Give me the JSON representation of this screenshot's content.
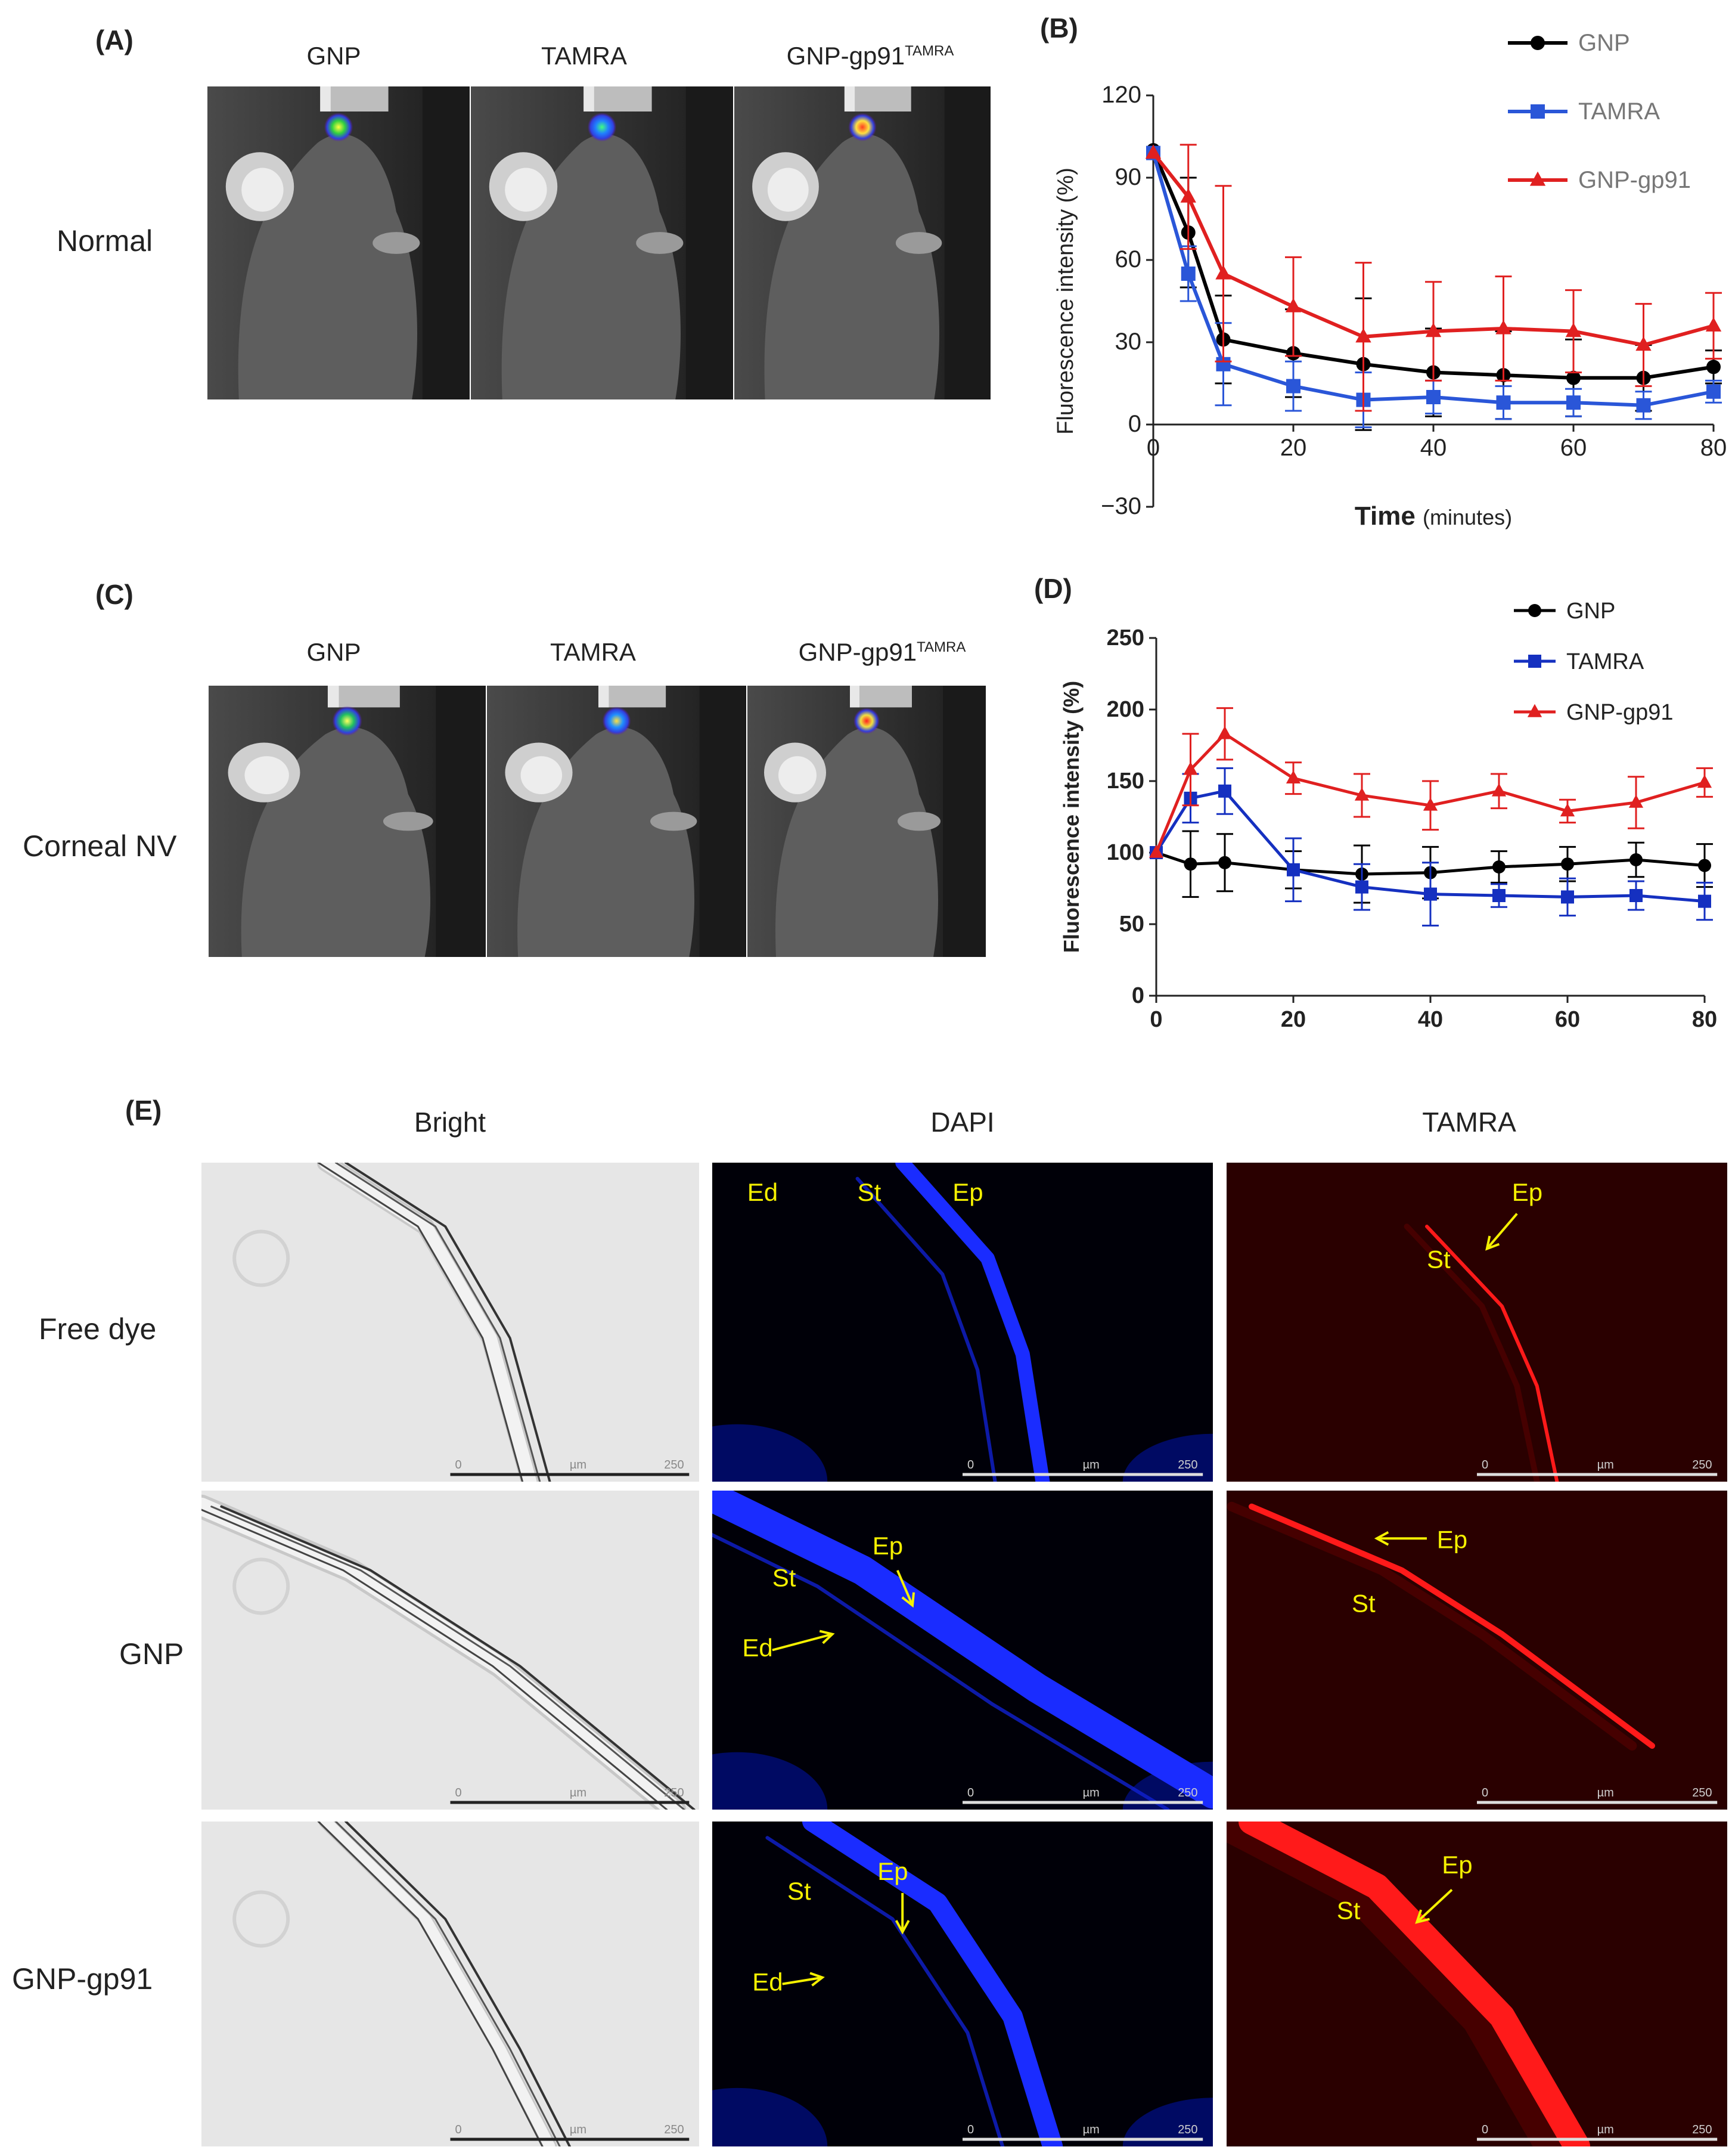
{
  "panelA": {
    "label": "(A)",
    "columns": [
      "GNP",
      "TAMRA",
      "GNP-gp91"
    ],
    "column_sup": "TAMRA",
    "row_label": "Normal"
  },
  "panelC": {
    "label": "(C)",
    "columns": [
      "GNP",
      "TAMRA",
      "GNP-gp91"
    ],
    "column_sup": "TAMRA",
    "row_label": "Corneal NV"
  },
  "panelE": {
    "label": "(E)",
    "columns": [
      "Bright",
      "DAPI",
      "TAMRA"
    ],
    "rows": [
      "Free dye",
      "GNP",
      "GNP-gp91"
    ],
    "scale": {
      "start": "0",
      "unit": "µm",
      "end": "250"
    },
    "annotations": {
      "free_dye_dapi": [
        "Ed",
        "St",
        "Ep"
      ],
      "free_dye_tamra": [
        "Ep",
        "St"
      ],
      "gnp_dapi": [
        "St",
        "Ep",
        "Ed"
      ],
      "gnp_tamra": [
        "Ep",
        "St"
      ],
      "gp91_dapi": [
        "St",
        "Ep",
        "Ed"
      ],
      "gp91_tamra": [
        "Ep",
        "St"
      ]
    }
  },
  "colors": {
    "GNP": "#000000",
    "TAMRA": "#2a56d8",
    "GNP-gp91": "#e02020",
    "TAMRA_D": "#1530c0",
    "annotation": "#f5f000"
  },
  "chart_data": [
    {
      "panel": "(B)",
      "type": "line",
      "xlabel_bold": "Time",
      "xlabel_rest": "(minutes)",
      "ylabel": "Fluorescence intensity (%)",
      "xlim": [
        0,
        80
      ],
      "ylim": [
        -30,
        120
      ],
      "xticks": [
        0,
        20,
        40,
        60,
        80
      ],
      "yticks": [
        -30,
        0,
        30,
        60,
        90,
        120
      ],
      "x": [
        0,
        5,
        10,
        20,
        30,
        40,
        50,
        60,
        70,
        80
      ],
      "legend_position": "top-right",
      "series": [
        {
          "name": "GNP",
          "marker": "circle",
          "values": [
            100,
            70,
            31,
            26,
            22,
            19,
            18,
            17,
            17,
            21
          ],
          "errors": [
            0,
            20,
            16,
            16,
            24,
            16,
            16,
            14,
            12,
            6
          ]
        },
        {
          "name": "TAMRA",
          "marker": "square",
          "values": [
            99,
            55,
            22,
            14,
            9,
            10,
            8,
            8,
            7,
            12
          ],
          "errors": [
            0,
            10,
            15,
            9,
            10,
            6,
            6,
            5,
            5,
            4
          ]
        },
        {
          "name": "GNP-gp91",
          "marker": "triangle",
          "values": [
            99,
            83,
            55,
            43,
            32,
            34,
            35,
            34,
            29,
            36
          ],
          "errors": [
            0,
            19,
            32,
            18,
            27,
            18,
            19,
            15,
            15,
            12
          ]
        }
      ]
    },
    {
      "panel": "(D)",
      "type": "line",
      "xlabel": "",
      "ylabel": "Fluorescence intensity (%)",
      "xlim": [
        0,
        80
      ],
      "ylim": [
        0,
        250
      ],
      "xticks": [
        0,
        20,
        40,
        60,
        80
      ],
      "yticks": [
        0,
        50,
        100,
        150,
        200,
        250
      ],
      "x": [
        0,
        5,
        10,
        20,
        30,
        40,
        50,
        60,
        70,
        80
      ],
      "legend_position": "top-right",
      "series": [
        {
          "name": "GNP",
          "marker": "circle",
          "values": [
            100,
            92,
            93,
            88,
            85,
            86,
            90,
            92,
            95,
            91
          ],
          "errors": [
            0,
            23,
            20,
            13,
            20,
            18,
            11,
            12,
            12,
            15
          ]
        },
        {
          "name": "TAMRA",
          "marker": "square",
          "values": [
            100,
            138,
            143,
            88,
            76,
            71,
            70,
            69,
            70,
            66
          ],
          "errors": [
            0,
            17,
            16,
            22,
            16,
            22,
            8,
            13,
            10,
            13
          ]
        },
        {
          "name": "GNP-gp91",
          "marker": "triangle",
          "values": [
            100,
            158,
            183,
            152,
            140,
            133,
            143,
            129,
            135,
            149
          ],
          "errors": [
            0,
            25,
            18,
            11,
            15,
            17,
            12,
            8,
            18,
            10
          ]
        }
      ]
    }
  ]
}
